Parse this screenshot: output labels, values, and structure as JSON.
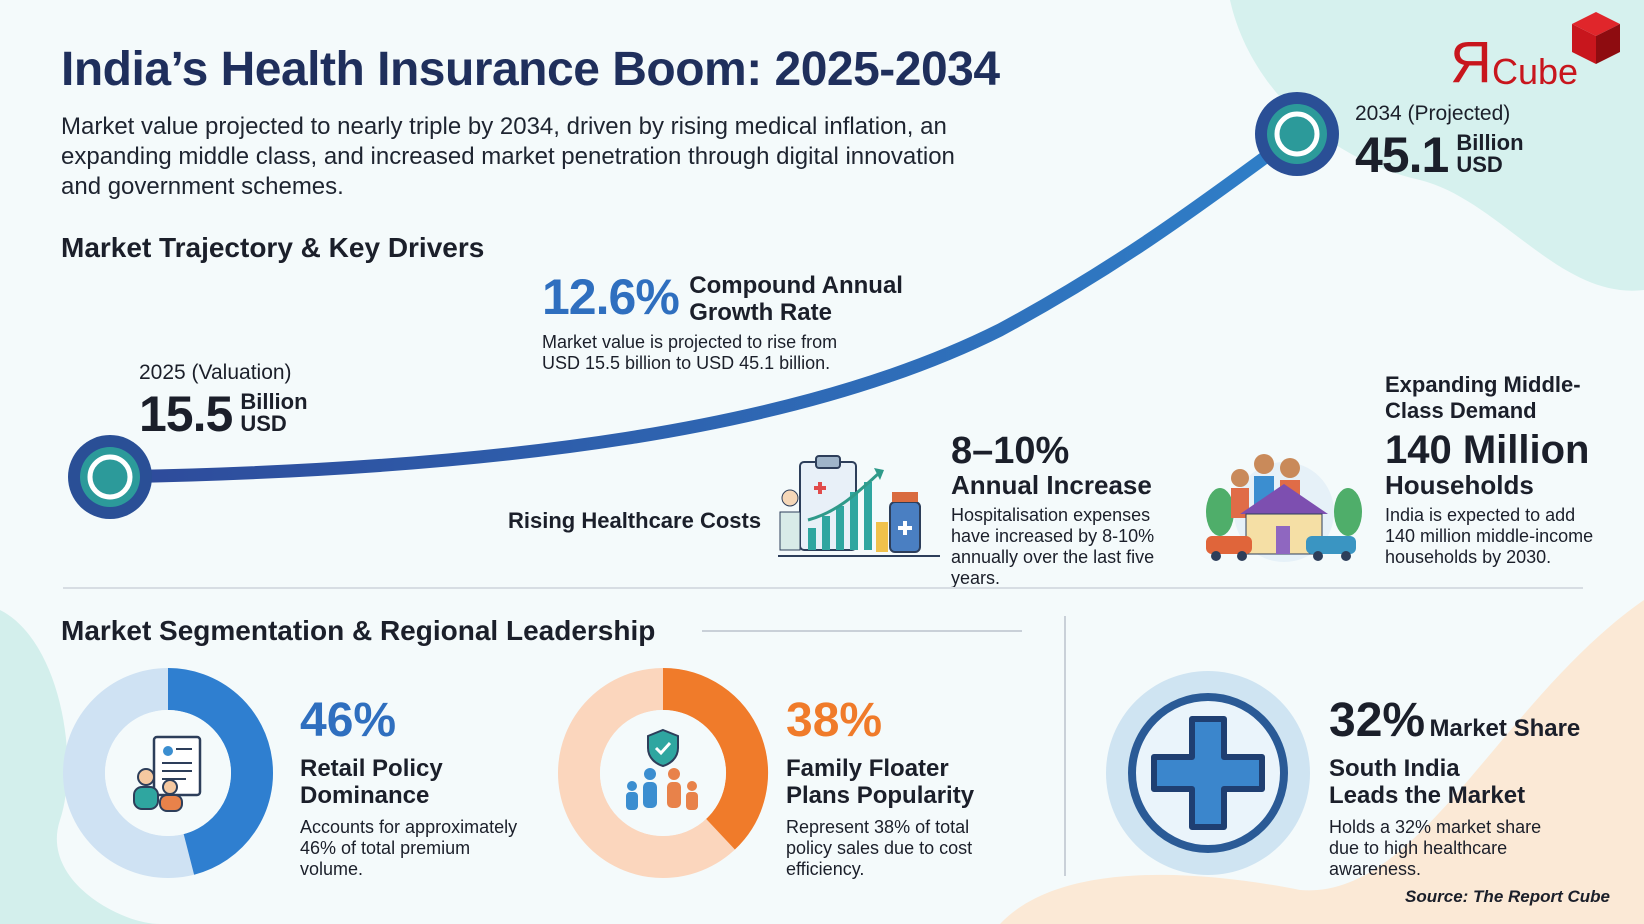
{
  "title": "India’s Health Insurance Boom: 2025-2034",
  "subtitle": "Market value projected to nearly triple by 2034, driven by rising medical inflation, an expanding middle class, and increased market penetration through digital innovation and government schemes.",
  "logo": {
    "text": "ЯCube",
    "color": "#c8161d"
  },
  "trajectory": {
    "heading": "Market Trajectory & Key Drivers",
    "start": {
      "label": "2025 (Valuation)",
      "value": "15.5",
      "unit1": "Billion",
      "unit2": "USD"
    },
    "end": {
      "label": "2034 (Projected)",
      "value": "45.1",
      "unit1": "Billion",
      "unit2": "USD"
    },
    "cagr": {
      "value": "12.6%",
      "label1": "Compound Annual",
      "label2": "Growth Rate",
      "desc": "Market value is projected to rise from USD 15.5 billion to USD 45.1 billion."
    },
    "costs": {
      "label": "Rising Healthcare Costs",
      "value": "8–10%",
      "head": "Annual Increase",
      "desc": "Hospitalisation expenses have increased by 8-10% annually over the last five years."
    },
    "middle": {
      "label": "Expanding Middle-Class Demand",
      "value": "140 Million",
      "head": "Households",
      "desc": "India is expected to add 140 million middle-income households by 2030."
    }
  },
  "segmentation": {
    "heading": "Market Segmentation & Regional Leadership",
    "retail": {
      "value": "46%",
      "share": 0.46,
      "head": "Retail Policy Dominance",
      "desc": "Accounts for approximately 46% of total premium volume.",
      "color": "#2f7fd0"
    },
    "family": {
      "value": "38%",
      "share": 0.38,
      "head": "Family Floater Plans Popularity",
      "desc": "Represent 38% of total policy sales due to cost efficiency.",
      "color": "#f07b2a"
    },
    "south": {
      "value": "32%",
      "suffix": "Market Share",
      "head": "South India Leads the Market",
      "desc": "Holds a 32% market share due to high healthcare awareness.",
      "color": "#2f6fbf"
    }
  },
  "source": "Source: The Report Cube"
}
